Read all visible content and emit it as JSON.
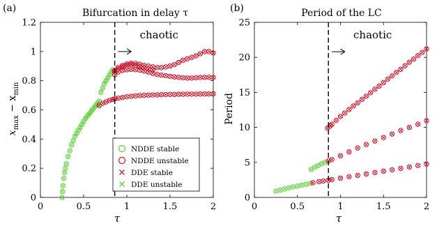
{
  "colors": {
    "stable": "#5ecf3a",
    "unstable": "#c8142a",
    "axis": "#000000"
  },
  "chart_data": [
    {
      "type": "scatter",
      "panel_label": "(a)",
      "title": "Bifurcation in delay τ",
      "xlabel": "τ",
      "ylabel": "x_max − x_min",
      "ylabel_main": "x",
      "ylabel_sub1": "max",
      "ylabel_mid": " − x",
      "ylabel_sub2": "min",
      "xlim": [
        0,
        2
      ],
      "ylim": [
        0,
        1.2
      ],
      "xticks": [
        0,
        0.5,
        1,
        1.5,
        2
      ],
      "xtick_labels": [
        "0",
        "0.5",
        "1",
        "1.5",
        "2"
      ],
      "yticks": [
        0,
        0.2,
        0.4,
        0.6,
        0.8,
        1,
        1.2
      ],
      "ytick_labels": [
        "0",
        "0.2",
        "0.4",
        "0.6",
        "0.8",
        "1",
        "1.2"
      ],
      "vline": 0.86,
      "annotation": "chaotic",
      "arrow": {
        "x_start": 0.9,
        "x_end": 1.05,
        "y": 1.0
      },
      "annotation_pos": {
        "x": 1.15,
        "y": 1.09
      },
      "legend": {
        "placement": "bottom-right",
        "entries": [
          {
            "label": "NDDE stable",
            "marker": "circle",
            "series": "stable"
          },
          {
            "label": "NDDE unstable",
            "marker": "circle",
            "series": "unstable"
          },
          {
            "label": "DDE stable",
            "marker": "cross",
            "series": "unstable"
          },
          {
            "label": "DDE unstable",
            "marker": "cross",
            "series": "stable"
          }
        ]
      },
      "series": [
        {
          "kind": "ndde_stable",
          "color": "stable",
          "marker": "circle",
          "x": [
            0.25,
            0.255,
            0.26,
            0.27,
            0.28,
            0.29,
            0.3,
            0.32,
            0.34,
            0.36,
            0.38,
            0.4,
            0.42,
            0.44,
            0.46,
            0.48,
            0.5,
            0.52,
            0.54,
            0.56,
            0.58,
            0.6,
            0.62,
            0.64,
            0.66,
            0.68,
            0.7,
            0.72,
            0.74,
            0.76,
            0.78,
            0.8,
            0.82,
            0.84
          ],
          "y": [
            0.0,
            0.04,
            0.08,
            0.13,
            0.17,
            0.2,
            0.23,
            0.28,
            0.32,
            0.36,
            0.39,
            0.42,
            0.44,
            0.46,
            0.48,
            0.5,
            0.52,
            0.54,
            0.555,
            0.57,
            0.585,
            0.6,
            0.615,
            0.63,
            0.645,
            0.66,
            0.72,
            0.75,
            0.78,
            0.8,
            0.82,
            0.84,
            0.86,
            0.875
          ]
        },
        {
          "kind": "branch_low",
          "color": "unstable",
          "marker": "circle",
          "x": [
            0.68,
            0.72,
            0.76,
            0.8,
            0.84,
            0.86,
            0.9,
            0.95,
            1.0,
            1.05,
            1.1,
            1.15,
            1.2,
            1.25,
            1.3,
            1.35,
            1.4,
            1.45,
            1.5,
            1.55,
            1.6,
            1.65,
            1.7,
            1.75,
            1.8,
            1.85,
            1.9,
            1.95,
            2.0
          ],
          "y": [
            0.63,
            0.645,
            0.655,
            0.665,
            0.672,
            0.675,
            0.68,
            0.685,
            0.69,
            0.693,
            0.696,
            0.698,
            0.7,
            0.701,
            0.702,
            0.703,
            0.704,
            0.705,
            0.706,
            0.706,
            0.707,
            0.707,
            0.708,
            0.708,
            0.708,
            0.709,
            0.709,
            0.709,
            0.71
          ]
        },
        {
          "kind": "branch_mid",
          "color": "unstable",
          "marker": "circle",
          "x": [
            0.86,
            0.9,
            0.95,
            1.0,
            1.05,
            1.1,
            1.15,
            1.2,
            1.25,
            1.3,
            1.35,
            1.4,
            1.45,
            1.5,
            1.55,
            1.6,
            1.65,
            1.7,
            1.75,
            1.8,
            1.85,
            1.9,
            1.95,
            2.0
          ],
          "y": [
            0.84,
            0.86,
            0.87,
            0.875,
            0.878,
            0.876,
            0.872,
            0.866,
            0.858,
            0.85,
            0.843,
            0.838,
            0.834,
            0.83,
            0.826,
            0.823,
            0.82,
            0.818,
            0.818,
            0.82,
            0.822,
            0.823,
            0.823,
            0.822
          ]
        },
        {
          "kind": "branch_top",
          "color": "unstable",
          "marker": "circle",
          "x": [
            0.86,
            0.9,
            0.95,
            1.0,
            1.05,
            1.1,
            1.15,
            1.2,
            1.25,
            1.3,
            1.35,
            1.4,
            1.45,
            1.5,
            1.55,
            1.6,
            1.65,
            1.7,
            1.75,
            1.8,
            1.85,
            1.9,
            1.95,
            2.0
          ],
          "y": [
            0.87,
            0.89,
            0.905,
            0.915,
            0.92,
            0.918,
            0.912,
            0.905,
            0.9,
            0.895,
            0.89,
            0.89,
            0.894,
            0.9,
            0.91,
            0.925,
            0.94,
            0.95,
            0.96,
            0.97,
            0.985,
            1.0,
            1.0,
            0.99
          ]
        },
        {
          "kind": "branch_upper_mid",
          "color": "unstable",
          "marker": "circle",
          "x": [
            0.86,
            0.9,
            0.95,
            1.0,
            1.05,
            1.1,
            1.15,
            1.2,
            1.25,
            1.3
          ],
          "y": [
            0.86,
            0.88,
            0.895,
            0.905,
            0.91,
            0.905,
            0.896,
            0.888,
            0.88,
            0.874
          ]
        }
      ]
    },
    {
      "type": "scatter",
      "panel_label": "(b)",
      "title": "Period of the LC",
      "xlabel": "τ",
      "ylabel": "Period",
      "xlim": [
        0,
        2
      ],
      "ylim": [
        0,
        25
      ],
      "xticks": [
        0,
        0.5,
        1,
        1.5,
        2
      ],
      "xtick_labels": [
        "0",
        "0.5",
        "1",
        "1.5",
        "2"
      ],
      "yticks": [
        0,
        5,
        10,
        15,
        20,
        25
      ],
      "ytick_labels": [
        "0",
        "5",
        "10",
        "15",
        "20",
        "25"
      ],
      "vline": 0.86,
      "annotation": "chaotic",
      "arrow": {
        "x_start": 0.9,
        "x_end": 1.05,
        "y": 20.8
      },
      "annotation_pos": {
        "x": 1.15,
        "y": 22.7
      },
      "series": [
        {
          "kind": "low_stable",
          "color": "stable",
          "marker": "circle",
          "x": [
            0.25,
            0.3,
            0.35,
            0.4,
            0.45,
            0.5,
            0.55,
            0.6,
            0.65
          ],
          "y": [
            0.9,
            1.05,
            1.2,
            1.35,
            1.5,
            1.62,
            1.75,
            1.87,
            2.0
          ]
        },
        {
          "kind": "low_unstable",
          "color": "unstable",
          "marker": "circle",
          "x": [
            0.68,
            0.75,
            0.8,
            0.86,
            0.9,
            1.0,
            1.1,
            1.2,
            1.3,
            1.4,
            1.5,
            1.6,
            1.7,
            1.8,
            1.9,
            2.0
          ],
          "y": [
            2.1,
            2.25,
            2.35,
            2.45,
            2.55,
            2.75,
            2.95,
            3.15,
            3.35,
            3.55,
            3.75,
            3.95,
            4.15,
            4.35,
            4.55,
            4.75
          ]
        },
        {
          "kind": "mid_stable",
          "color": "stable",
          "marker": "circle",
          "x": [
            0.66,
            0.7,
            0.74,
            0.78,
            0.82
          ],
          "y": [
            4.0,
            4.3,
            4.55,
            4.8,
            5.0
          ]
        },
        {
          "kind": "mid_unstable",
          "color": "unstable",
          "marker": "circle",
          "x": [
            0.86,
            0.9,
            1.0,
            1.1,
            1.2,
            1.3,
            1.4,
            1.5,
            1.6,
            1.7,
            1.8,
            1.9,
            2.0
          ],
          "y": [
            5.2,
            5.4,
            5.95,
            6.5,
            7.05,
            7.55,
            8.05,
            8.55,
            9.05,
            9.55,
            10.0,
            10.45,
            10.95
          ]
        },
        {
          "kind": "top_unstable",
          "color": "unstable",
          "marker": "circle",
          "x": [
            0.85,
            0.88,
            0.9,
            0.95,
            1.0,
            1.05,
            1.1,
            1.15,
            1.2,
            1.25,
            1.3,
            1.35,
            1.4,
            1.45,
            1.5,
            1.55,
            1.6,
            1.65,
            1.7,
            1.75,
            1.8,
            1.85,
            1.9,
            1.95,
            2.0
          ],
          "y": [
            9.9,
            10.2,
            10.45,
            11.0,
            11.55,
            12.05,
            12.55,
            13.05,
            13.5,
            14.0,
            14.45,
            14.95,
            15.45,
            15.9,
            16.4,
            16.9,
            17.35,
            17.85,
            18.3,
            18.8,
            19.3,
            19.75,
            20.25,
            20.7,
            21.2
          ]
        }
      ]
    }
  ]
}
